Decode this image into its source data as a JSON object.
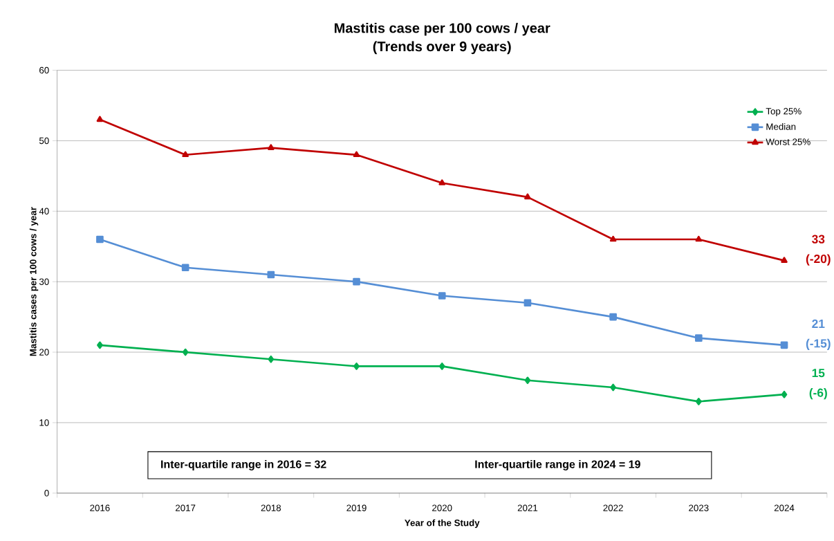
{
  "chart_data": {
    "type": "line",
    "title": "Mastitis case per 100 cows / year",
    "subtitle": "(Trends over 9 years)",
    "xlabel": "Year of the Study",
    "ylabel": "Mastitis cases per 100 cows / year",
    "categories": [
      "2016",
      "2017",
      "2018",
      "2019",
      "2020",
      "2021",
      "2022",
      "2023",
      "2024"
    ],
    "series": [
      {
        "name": "Top 25%",
        "color": "#00b050",
        "marker": "diamond",
        "values": [
          21,
          20,
          19,
          18,
          18,
          16,
          15,
          13,
          14
        ]
      },
      {
        "name": "Median",
        "color": "#558ed5",
        "marker": "square",
        "values": [
          36,
          32,
          31,
          30,
          28,
          27,
          25,
          22,
          21
        ]
      },
      {
        "name": "Worst 25%",
        "color": "#c00000",
        "marker": "triangle",
        "values": [
          53,
          48,
          49,
          48,
          44,
          42,
          36,
          36,
          33
        ]
      }
    ],
    "ylim": [
      0,
      60
    ],
    "yticks": [
      0,
      10,
      20,
      30,
      40,
      50,
      60
    ],
    "grid": "y",
    "legend": "top right",
    "line_style": "solid",
    "annotations": [
      {
        "text": "33",
        "x": "2024",
        "y": 33
      },
      {
        "text": "(-20)",
        "x": "2024",
        "y": 33
      },
      {
        "text": "21",
        "x": "2024",
        "y": 21
      },
      {
        "text": "(-15)",
        "x": "2024",
        "y": 21
      },
      {
        "text": "15",
        "x": "2024",
        "y": 14
      },
      {
        "text": "(-6)",
        "x": "2024",
        "y": 14
      },
      "Inter-quartile range in 2016  = 32",
      "Inter-quartile range in 2024 = 19"
    ]
  }
}
